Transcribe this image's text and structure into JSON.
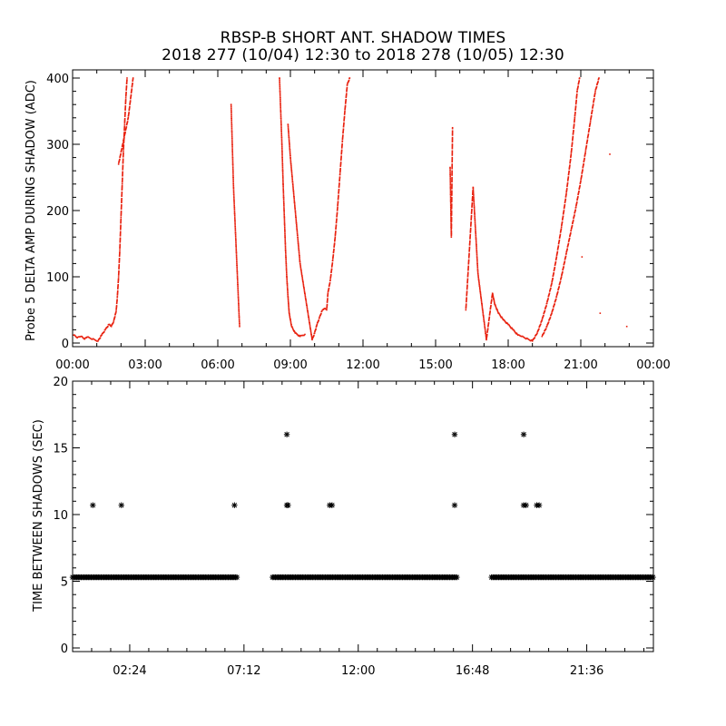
{
  "chart_data": [
    {
      "type": "scatter",
      "title": "RBSP-B SHORT ANT. SHADOW TIMES",
      "subtitle": "2018 277 (10/04) 12:30 to 2018 278 (10/05) 12:30",
      "ylabel": "Probe 5 DELTA AMP DURING SHADOW (ADC)",
      "xlim_hours": [
        0,
        24
      ],
      "ylim": [
        0,
        400
      ],
      "xticks": [
        0,
        3,
        6,
        9,
        12,
        15,
        18,
        21,
        24
      ],
      "xtick_labels": [
        "00:00",
        "03:00",
        "06:00",
        "09:00",
        "12:00",
        "15:00",
        "18:00",
        "21:00",
        "00:00"
      ],
      "yticks": [
        0,
        100,
        200,
        300,
        400
      ],
      "ytick_labels": [
        "0",
        "100",
        "200",
        "300",
        "400"
      ],
      "point_color": "#e8200e",
      "series": [
        {
          "points": [
            [
              0.05,
              12
            ],
            [
              0.2,
              8
            ],
            [
              0.35,
              10
            ],
            [
              0.5,
              6
            ],
            [
              0.6,
              9
            ],
            [
              1.05,
              3
            ],
            [
              1.2,
              12
            ],
            [
              1.35,
              20
            ],
            [
              1.5,
              28
            ],
            [
              1.6,
              25
            ],
            [
              1.7,
              33
            ],
            [
              1.8,
              48
            ],
            [
              1.85,
              70
            ],
            [
              1.9,
              100
            ],
            [
              1.95,
              140
            ],
            [
              2.0,
              190
            ],
            [
              2.05,
              240
            ],
            [
              2.1,
              290
            ],
            [
              2.15,
              330
            ],
            [
              2.2,
              370
            ],
            [
              2.25,
              400
            ],
            [
              1.9,
              270
            ],
            [
              2.3,
              340
            ],
            [
              2.5,
              400
            ],
            [
              6.55,
              360
            ],
            [
              6.65,
              235
            ],
            [
              6.9,
              25
            ],
            [
              8.55,
              400
            ],
            [
              8.6,
              350
            ],
            [
              8.65,
              300
            ],
            [
              8.7,
              240
            ],
            [
              8.75,
              190
            ],
            [
              8.8,
              140
            ],
            [
              8.85,
              100
            ],
            [
              8.9,
              70
            ],
            [
              8.95,
              45
            ],
            [
              9.05,
              25
            ],
            [
              9.2,
              15
            ],
            [
              9.4,
              10
            ],
            [
              9.6,
              13
            ],
            [
              8.9,
              330
            ],
            [
              9.0,
              280
            ],
            [
              9.1,
              240
            ],
            [
              9.2,
              200
            ],
            [
              9.3,
              160
            ],
            [
              9.4,
              120
            ],
            [
              9.9,
              5
            ],
            [
              10.0,
              15
            ],
            [
              10.1,
              28
            ],
            [
              10.2,
              38
            ],
            [
              10.3,
              48
            ],
            [
              10.4,
              52
            ],
            [
              10.5,
              50
            ],
            [
              10.55,
              75
            ],
            [
              10.65,
              95
            ],
            [
              10.75,
              125
            ],
            [
              10.85,
              160
            ],
            [
              10.95,
              205
            ],
            [
              11.05,
              255
            ],
            [
              11.15,
              305
            ],
            [
              11.25,
              350
            ],
            [
              11.35,
              390
            ],
            [
              11.45,
              400
            ],
            [
              15.6,
              265
            ],
            [
              15.65,
              160
            ],
            [
              15.7,
              325
            ],
            [
              16.25,
              50
            ],
            [
              16.55,
              235
            ],
            [
              16.75,
              105
            ],
            [
              17.1,
              5
            ],
            [
              17.35,
              75
            ],
            [
              17.45,
              58
            ],
            [
              17.6,
              45
            ],
            [
              17.8,
              35
            ],
            [
              18.0,
              28
            ],
            [
              18.2,
              20
            ],
            [
              18.4,
              12
            ],
            [
              18.55,
              10
            ],
            [
              19.0,
              3
            ],
            [
              19.2,
              15
            ],
            [
              19.4,
              35
            ],
            [
              19.6,
              60
            ],
            [
              19.8,
              90
            ],
            [
              20.0,
              130
            ],
            [
              20.2,
              175
            ],
            [
              20.4,
              225
            ],
            [
              20.6,
              285
            ],
            [
              20.75,
              340
            ],
            [
              20.85,
              380
            ],
            [
              20.95,
              400
            ],
            [
              19.4,
              10
            ],
            [
              19.6,
              25
            ],
            [
              19.8,
              45
            ],
            [
              20.0,
              70
            ],
            [
              20.2,
              100
            ],
            [
              20.4,
              135
            ],
            [
              20.6,
              170
            ],
            [
              20.8,
              205
            ],
            [
              21.0,
              245
            ],
            [
              21.2,
              290
            ],
            [
              21.4,
              335
            ],
            [
              21.6,
              380
            ],
            [
              21.75,
              400
            ],
            [
              21.05,
              130
            ],
            [
              22.2,
              285
            ],
            [
              22.9,
              25
            ],
            [
              21.8,
              45
            ]
          ]
        }
      ]
    },
    {
      "type": "scatter",
      "ylabel": "TIME BETWEEN SHADOWS (SEC)",
      "xlim_hours": [
        0,
        24.4
      ],
      "ylim": [
        0,
        20
      ],
      "xticks": [
        2.4,
        7.2,
        12.0,
        16.8,
        21.6
      ],
      "xtick_labels": [
        "02:24",
        "07:12",
        "12:00",
        "16:48",
        "21:36"
      ],
      "yticks": [
        0,
        5,
        10,
        15,
        20
      ],
      "ytick_labels": [
        "0",
        "5",
        "10",
        "15",
        "20"
      ],
      "point_color": "#000000",
      "marker": "*",
      "baseline_value": 5.3,
      "baseline_segments_hours": [
        [
          0,
          6.95
        ],
        [
          8.4,
          16.2
        ],
        [
          17.6,
          24.4
        ]
      ],
      "points": [
        [
          0.85,
          10.7
        ],
        [
          2.05,
          10.7
        ],
        [
          6.8,
          10.7
        ],
        [
          9.0,
          16.0
        ],
        [
          9.0,
          10.7
        ],
        [
          9.05,
          10.7
        ],
        [
          10.8,
          10.7
        ],
        [
          10.9,
          10.7
        ],
        [
          16.05,
          16.0
        ],
        [
          16.05,
          10.7
        ],
        [
          18.95,
          16.0
        ],
        [
          18.95,
          10.7
        ],
        [
          19.05,
          10.7
        ],
        [
          19.5,
          10.7
        ],
        [
          19.6,
          10.7
        ]
      ]
    }
  ]
}
